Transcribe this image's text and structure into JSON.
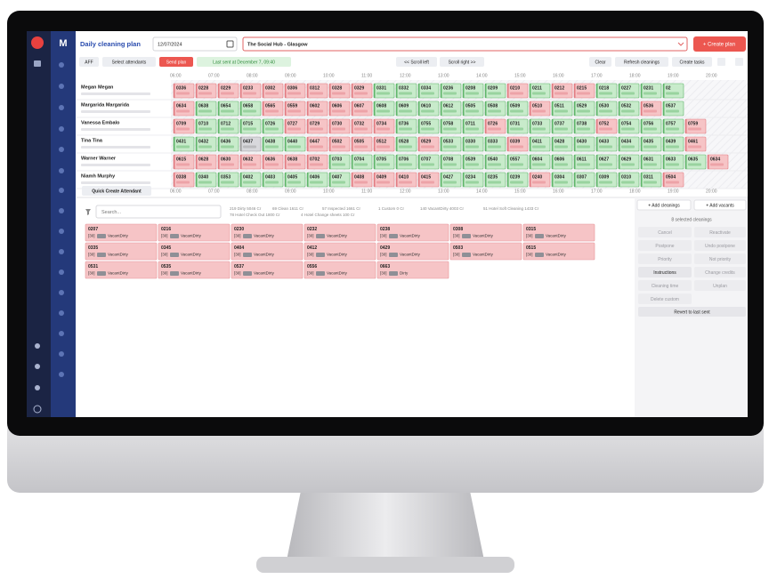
{
  "app": {
    "logo": "M",
    "title": "Daily cleaning plan",
    "date": "12/07/2024",
    "hotel": "The Social Hub - Glasgow",
    "create_plan": "+ Create plan"
  },
  "toolbar": {
    "left": [
      "AFF",
      "Select attendants"
    ],
    "send": "Send plan",
    "last_sent": "Last sent at December 7, 09:40",
    "scroll": [
      "<< Scroll left",
      "Scroll right >>"
    ],
    "right": [
      "Clear",
      "Refresh cleanings",
      "Create tasks"
    ]
  },
  "times": [
    "06:00",
    "07:00",
    "08:00",
    "09:00",
    "10:00",
    "11:00",
    "12:00",
    "13:00",
    "14:00",
    "15:00",
    "16:00",
    "17:00",
    "18:00",
    "19:00",
    "20:00"
  ],
  "attendants": [
    {
      "name": "Megan Megan",
      "rooms": [
        [
          "0336",
          "dirty"
        ],
        [
          "0228",
          "dirty"
        ],
        [
          "0229",
          "dirty"
        ],
        [
          "0233",
          "dirty"
        ],
        [
          "0302",
          "dirty"
        ],
        [
          "0306",
          "dirty"
        ],
        [
          "0312",
          "dirty"
        ],
        [
          "0328",
          "dirty"
        ],
        [
          "0329",
          "dirty"
        ],
        [
          "0331",
          "clean"
        ],
        [
          "0332",
          "clean"
        ],
        [
          "0334",
          "clean"
        ],
        [
          "0236",
          "clean"
        ],
        [
          "0208",
          "clean"
        ],
        [
          "0209",
          "clean"
        ],
        [
          "0210",
          "dirty"
        ],
        [
          "0211",
          "clean"
        ],
        [
          "0212",
          "dirty"
        ],
        [
          "0215",
          "dirty"
        ],
        [
          "0218",
          "clean"
        ],
        [
          "0227",
          "clean"
        ],
        [
          "0231",
          "clean"
        ],
        [
          "02",
          "clean"
        ]
      ]
    },
    {
      "name": "Margarida Margarida",
      "rooms": [
        [
          "0634",
          "dirty"
        ],
        [
          "0638",
          "clean"
        ],
        [
          "0654",
          "clean"
        ],
        [
          "0658",
          "clean"
        ],
        [
          "0565",
          "dirty"
        ],
        [
          "0559",
          "dirty"
        ],
        [
          "0602",
          "dirty"
        ],
        [
          "0606",
          "dirty"
        ],
        [
          "0607",
          "dirty"
        ],
        [
          "0608",
          "clean"
        ],
        [
          "0609",
          "clean"
        ],
        [
          "0610",
          "clean"
        ],
        [
          "0612",
          "clean"
        ],
        [
          "0505",
          "clean"
        ],
        [
          "0508",
          "clean"
        ],
        [
          "0509",
          "clean"
        ],
        [
          "0510",
          "dirty"
        ],
        [
          "0511",
          "clean"
        ],
        [
          "0529",
          "clean"
        ],
        [
          "0530",
          "clean"
        ],
        [
          "0532",
          "clean"
        ],
        [
          "0536",
          "dirty"
        ],
        [
          "0537",
          "clean"
        ]
      ]
    },
    {
      "name": "Vanessa Embalo",
      "rooms": [
        [
          "0709",
          "dirty"
        ],
        [
          "0710",
          "clean"
        ],
        [
          "0712",
          "clean"
        ],
        [
          "0715",
          "clean"
        ],
        [
          "0726",
          "clean"
        ],
        [
          "0727",
          "dirty"
        ],
        [
          "0729",
          "dirty"
        ],
        [
          "0730",
          "dirty"
        ],
        [
          "0732",
          "dirty"
        ],
        [
          "0734",
          "dirty"
        ],
        [
          "0736",
          "clean"
        ],
        [
          "0755",
          "clean"
        ],
        [
          "0758",
          "clean"
        ],
        [
          "0711",
          "clean"
        ],
        [
          "0726",
          "dirty"
        ],
        [
          "0731",
          "clean"
        ],
        [
          "0733",
          "clean"
        ],
        [
          "0737",
          "clean"
        ],
        [
          "0738",
          "clean"
        ],
        [
          "0752",
          "dirty"
        ],
        [
          "0754",
          "clean"
        ],
        [
          "0756",
          "clean"
        ],
        [
          "0757",
          "clean"
        ],
        [
          "0759",
          "dirty"
        ]
      ]
    },
    {
      "name": "Tina Tina",
      "rooms": [
        [
          "0431",
          "clean"
        ],
        [
          "0432",
          "clean"
        ],
        [
          "0436",
          "clean"
        ],
        [
          "0437",
          "inspected"
        ],
        [
          "0438",
          "clean"
        ],
        [
          "0440",
          "clean"
        ],
        [
          "0447",
          "dirty"
        ],
        [
          "0502",
          "dirty"
        ],
        [
          "0505",
          "dirty"
        ],
        [
          "0512",
          "dirty"
        ],
        [
          "0528",
          "clean"
        ],
        [
          "0529",
          "dirty"
        ],
        [
          "0533",
          "clean"
        ],
        [
          "0330",
          "clean"
        ],
        [
          "0333",
          "clean"
        ],
        [
          "0339",
          "dirty"
        ],
        [
          "0411",
          "clean"
        ],
        [
          "0428",
          "clean"
        ],
        [
          "0430",
          "clean"
        ],
        [
          "0433",
          "clean"
        ],
        [
          "0434",
          "clean"
        ],
        [
          "0435",
          "clean"
        ],
        [
          "0439",
          "clean"
        ],
        [
          "0461",
          "dirty"
        ]
      ]
    },
    {
      "name": "Warner Warner",
      "rooms": [
        [
          "0615",
          "dirty"
        ],
        [
          "0628",
          "dirty"
        ],
        [
          "0630",
          "dirty"
        ],
        [
          "0632",
          "dirty"
        ],
        [
          "0636",
          "dirty"
        ],
        [
          "0638",
          "dirty"
        ],
        [
          "0702",
          "dirty"
        ],
        [
          "0703",
          "clean"
        ],
        [
          "0704",
          "clean"
        ],
        [
          "0705",
          "clean"
        ],
        [
          "0706",
          "clean"
        ],
        [
          "0707",
          "clean"
        ],
        [
          "0708",
          "clean"
        ],
        [
          "0539",
          "clean"
        ],
        [
          "0540",
          "clean"
        ],
        [
          "0557",
          "clean"
        ],
        [
          "0604",
          "clean"
        ],
        [
          "0606",
          "clean"
        ],
        [
          "0611",
          "clean"
        ],
        [
          "0627",
          "clean"
        ],
        [
          "0629",
          "clean"
        ],
        [
          "0631",
          "clean"
        ],
        [
          "0633",
          "clean"
        ],
        [
          "0635",
          "clean"
        ],
        [
          "0634",
          "dirty"
        ]
      ]
    },
    {
      "name": "Niamh Murphy",
      "rooms": [
        [
          "0338",
          "dirty"
        ],
        [
          "0340",
          "clean"
        ],
        [
          "0353",
          "clean"
        ],
        [
          "0402",
          "clean"
        ],
        [
          "0403",
          "clean"
        ],
        [
          "0405",
          "clean"
        ],
        [
          "0406",
          "clean"
        ],
        [
          "0407",
          "clean"
        ],
        [
          "0408",
          "dirty"
        ],
        [
          "0409",
          "dirty"
        ],
        [
          "0410",
          "dirty"
        ],
        [
          "0415",
          "dirty"
        ],
        [
          "0427",
          "clean"
        ],
        [
          "0234",
          "clean"
        ],
        [
          "0235",
          "clean"
        ],
        [
          "0239",
          "clean"
        ],
        [
          "0240",
          "dirty"
        ],
        [
          "0304",
          "clean"
        ],
        [
          "0307",
          "clean"
        ],
        [
          "0309",
          "clean"
        ],
        [
          "0310",
          "clean"
        ],
        [
          "0311",
          "clean"
        ],
        [
          "0504",
          "dirty"
        ]
      ]
    }
  ],
  "quick_create": "Quick Create Attendant",
  "search_placeholder": "Search...",
  "summary": [
    "219 Dirty 5046 Cr",
    "69 Clean 1611 Cr",
    "57 Inspected 1661 Cr",
    "1 Custom 0 Cr",
    "140 VacantDirty 4003 Cr",
    "51 Hotel Soft Cleaning 1433 Cr",
    "78 Hotel Check Out 1800 Cr",
    "4 Hotel Change sheets 100 Cr"
  ],
  "cards": [
    {
      "room": "0207",
      "credits": "[30]",
      "type": "VacantDirty"
    },
    {
      "room": "0216",
      "credits": "[30]",
      "type": "VacantDirty"
    },
    {
      "room": "0230",
      "credits": "[30]",
      "type": "VacantDirty"
    },
    {
      "room": "0232",
      "credits": "[30]",
      "type": "VacantDirty"
    },
    {
      "room": "0238",
      "credits": "[30]",
      "type": "VacantDirty"
    },
    {
      "room": "0308",
      "credits": "[30]",
      "type": "VacantDirty"
    },
    {
      "room": "0315",
      "credits": "[30]",
      "type": "VacantDirty"
    },
    {
      "room": "0335",
      "credits": "[30]",
      "type": "VacantDirty"
    },
    {
      "room": "0345",
      "credits": "[30]",
      "type": "VacantDirty"
    },
    {
      "room": "0404",
      "credits": "[30]",
      "type": "VacantDirty"
    },
    {
      "room": "0412",
      "credits": "[30]",
      "type": "VacantDirty"
    },
    {
      "room": "0429",
      "credits": "[30]",
      "type": "VacantDirty"
    },
    {
      "room": "0503",
      "credits": "[30]",
      "type": "VacantDirty"
    },
    {
      "room": "0515",
      "credits": "[30]",
      "type": "VacantDirty"
    },
    {
      "room": "0531",
      "credits": "[30]",
      "type": "VacantDirty"
    },
    {
      "room": "0535",
      "credits": "[30]",
      "type": "VacantDirty"
    },
    {
      "room": "0537",
      "credits": "[30]",
      "type": "VacantDirty"
    },
    {
      "room": "0556",
      "credits": "[30]",
      "type": "VacantDirty"
    },
    {
      "room": "0663",
      "credits": "[30]",
      "type": "Dirty"
    }
  ],
  "panel": {
    "add": [
      "+ Add cleanings",
      "+ Add vacants"
    ],
    "selected": "8 selected cleanings",
    "actions": [
      "Cancel",
      "Reactivate",
      "Postpone",
      "Undo postpone",
      "Priority",
      "Not priority",
      "Instructions",
      "Change credits",
      "Cleaning time",
      "Unplan",
      "Delete custom"
    ],
    "revert": "Revert to last sent"
  }
}
